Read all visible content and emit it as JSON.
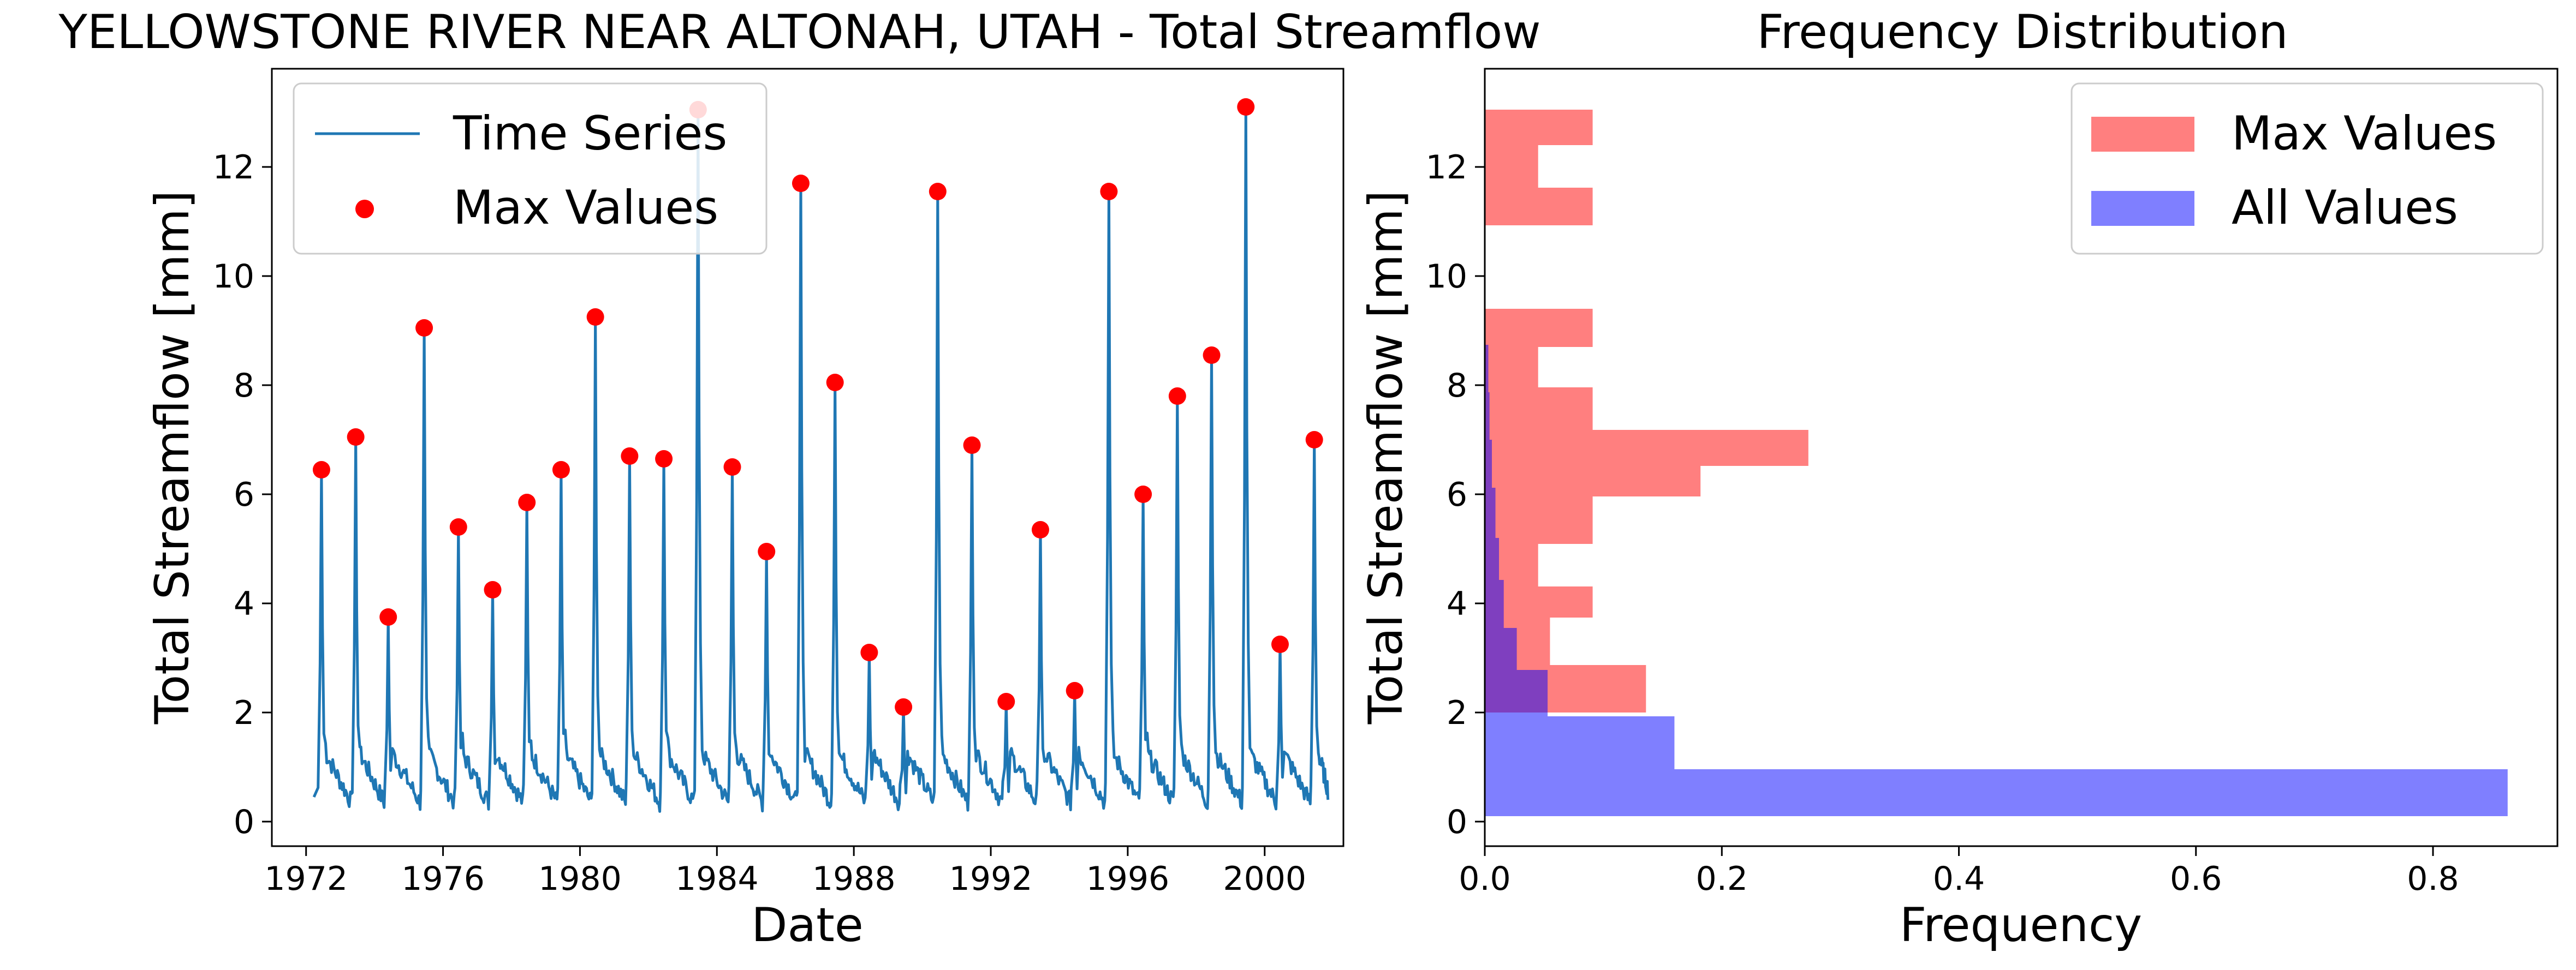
{
  "chart_data": [
    {
      "type": "line",
      "title": "YELLOWSTONE RIVER NEAR ALTONAH, UTAH - Total Streamflow",
      "xlabel": "Date",
      "ylabel": "Total Streamflow [mm]",
      "xlim": [
        1971.0,
        2002.3
      ],
      "ylim": [
        -0.45,
        13.8
      ],
      "xticks": [
        1972,
        1976,
        1980,
        1984,
        1988,
        1992,
        1996,
        2000
      ],
      "xtick_labels": [
        "1972",
        "1976",
        "1980",
        "1984",
        "1988",
        "1992",
        "1996",
        "2000"
      ],
      "yticks": [
        0,
        2,
        4,
        6,
        8,
        10,
        12
      ],
      "ytick_labels": [
        "0",
        "2",
        "4",
        "6",
        "8",
        "10",
        "12"
      ],
      "legend": {
        "position": "top-left",
        "entries": [
          "Time Series",
          "Max Values"
        ]
      },
      "grid": false,
      "series": [
        {
          "name": "Time Series",
          "kind": "line",
          "color": "#1f77b4",
          "peaks": [
            {
              "x": 1972.45,
              "y": 6.45
            },
            {
              "x": 1973.45,
              "y": 7.05
            },
            {
              "x": 1974.4,
              "y": 3.75
            },
            {
              "x": 1975.45,
              "y": 9.05
            },
            {
              "x": 1976.45,
              "y": 5.4
            },
            {
              "x": 1977.45,
              "y": 4.25
            },
            {
              "x": 1978.45,
              "y": 5.85
            },
            {
              "x": 1979.45,
              "y": 6.45
            },
            {
              "x": 1980.45,
              "y": 9.25
            },
            {
              "x": 1981.45,
              "y": 6.7
            },
            {
              "x": 1982.45,
              "y": 6.65
            },
            {
              "x": 1983.45,
              "y": 13.05
            },
            {
              "x": 1984.45,
              "y": 6.5
            },
            {
              "x": 1985.45,
              "y": 4.95
            },
            {
              "x": 1986.45,
              "y": 11.7
            },
            {
              "x": 1987.45,
              "y": 8.05
            },
            {
              "x": 1988.45,
              "y": 3.1
            },
            {
              "x": 1989.45,
              "y": 2.1
            },
            {
              "x": 1990.45,
              "y": 11.55
            },
            {
              "x": 1991.45,
              "y": 6.9
            },
            {
              "x": 1992.45,
              "y": 2.2
            },
            {
              "x": 1993.45,
              "y": 5.35
            },
            {
              "x": 1994.45,
              "y": 2.4
            },
            {
              "x": 1995.45,
              "y": 11.55
            },
            {
              "x": 1996.45,
              "y": 6.0
            },
            {
              "x": 1997.45,
              "y": 7.8
            },
            {
              "x": 1998.45,
              "y": 8.55
            },
            {
              "x": 1999.45,
              "y": 13.1
            },
            {
              "x": 2000.45,
              "y": 3.25
            },
            {
              "x": 2001.45,
              "y": 7.0
            }
          ],
          "x_end": 2001.85,
          "baseline": 0.35
        },
        {
          "name": "Max Values",
          "kind": "scatter",
          "color": "#ff0000",
          "x": [
            1972.45,
            1973.45,
            1974.4,
            1975.45,
            1976.45,
            1977.45,
            1978.45,
            1979.45,
            1980.45,
            1981.45,
            1982.45,
            1983.45,
            1984.45,
            1985.45,
            1986.45,
            1987.45,
            1988.45,
            1989.45,
            1990.45,
            1991.45,
            1992.45,
            1993.45,
            1994.45,
            1995.45,
            1996.45,
            1997.45,
            1998.45,
            1999.45,
            2000.45,
            2001.45
          ],
          "y": [
            6.45,
            7.05,
            3.75,
            9.05,
            5.4,
            4.25,
            5.85,
            6.45,
            9.25,
            6.7,
            6.65,
            13.05,
            6.5,
            4.95,
            11.7,
            8.05,
            3.1,
            2.1,
            11.55,
            6.9,
            2.2,
            5.35,
            2.4,
            11.55,
            6.0,
            7.8,
            8.55,
            13.1,
            3.25,
            7.0
          ]
        }
      ]
    },
    {
      "type": "bar",
      "orientation": "horizontal",
      "title": "Frequency Distribution",
      "xlabel": "Frequency",
      "ylabel": "Total Streamflow [mm]",
      "xlim": [
        0.0,
        0.905
      ],
      "ylim": [
        -0.45,
        13.8
      ],
      "xticks": [
        0.0,
        0.2,
        0.4,
        0.6,
        0.8
      ],
      "xtick_labels": [
        "0.0",
        "0.2",
        "0.4",
        "0.6",
        "0.8"
      ],
      "yticks": [
        0,
        2,
        4,
        6,
        8,
        10,
        12
      ],
      "ytick_labels": [
        "0",
        "2",
        "4",
        "6",
        "8",
        "10",
        "12"
      ],
      "legend": {
        "position": "top-right",
        "entries": [
          "Max Values",
          "All Values"
        ]
      },
      "grid": false,
      "series": [
        {
          "name": "Max Values",
          "color": "#ff0000",
          "opacity": 0.5,
          "bins": [
            {
              "y0": 2.0,
              "y1": 2.87,
              "value": 0.136
            },
            {
              "y0": 2.87,
              "y1": 3.74,
              "value": 0.055
            },
            {
              "y0": 3.74,
              "y1": 4.31,
              "value": 0.091
            },
            {
              "y0": 4.31,
              "y1": 5.09,
              "value": 0.045
            },
            {
              "y0": 5.09,
              "y1": 5.96,
              "value": 0.091
            },
            {
              "y0": 5.96,
              "y1": 6.52,
              "value": 0.182
            },
            {
              "y0": 6.52,
              "y1": 7.18,
              "value": 0.273
            },
            {
              "y0": 7.18,
              "y1": 7.96,
              "value": 0.091
            },
            {
              "y0": 7.96,
              "y1": 8.7,
              "value": 0.045
            },
            {
              "y0": 8.7,
              "y1": 9.4,
              "value": 0.091
            },
            {
              "y0": 10.93,
              "y1": 11.62,
              "value": 0.091
            },
            {
              "y0": 11.62,
              "y1": 12.4,
              "value": 0.045
            },
            {
              "y0": 12.4,
              "y1": 13.05,
              "value": 0.091
            }
          ]
        },
        {
          "name": "All Values",
          "color": "#0000ff",
          "opacity": 0.5,
          "bins": [
            {
              "y0": 0.1,
              "y1": 0.96,
              "value": 0.863
            },
            {
              "y0": 0.96,
              "y1": 1.93,
              "value": 0.16
            },
            {
              "y0": 1.93,
              "y1": 2.78,
              "value": 0.053
            },
            {
              "y0": 2.78,
              "y1": 3.55,
              "value": 0.027
            },
            {
              "y0": 3.55,
              "y1": 4.43,
              "value": 0.016
            },
            {
              "y0": 4.43,
              "y1": 5.2,
              "value": 0.012
            },
            {
              "y0": 5.2,
              "y1": 6.12,
              "value": 0.009
            },
            {
              "y0": 6.12,
              "y1": 7.0,
              "value": 0.006
            },
            {
              "y0": 7.0,
              "y1": 7.87,
              "value": 0.004
            },
            {
              "y0": 7.87,
              "y1": 8.74,
              "value": 0.003
            }
          ]
        }
      ]
    }
  ]
}
